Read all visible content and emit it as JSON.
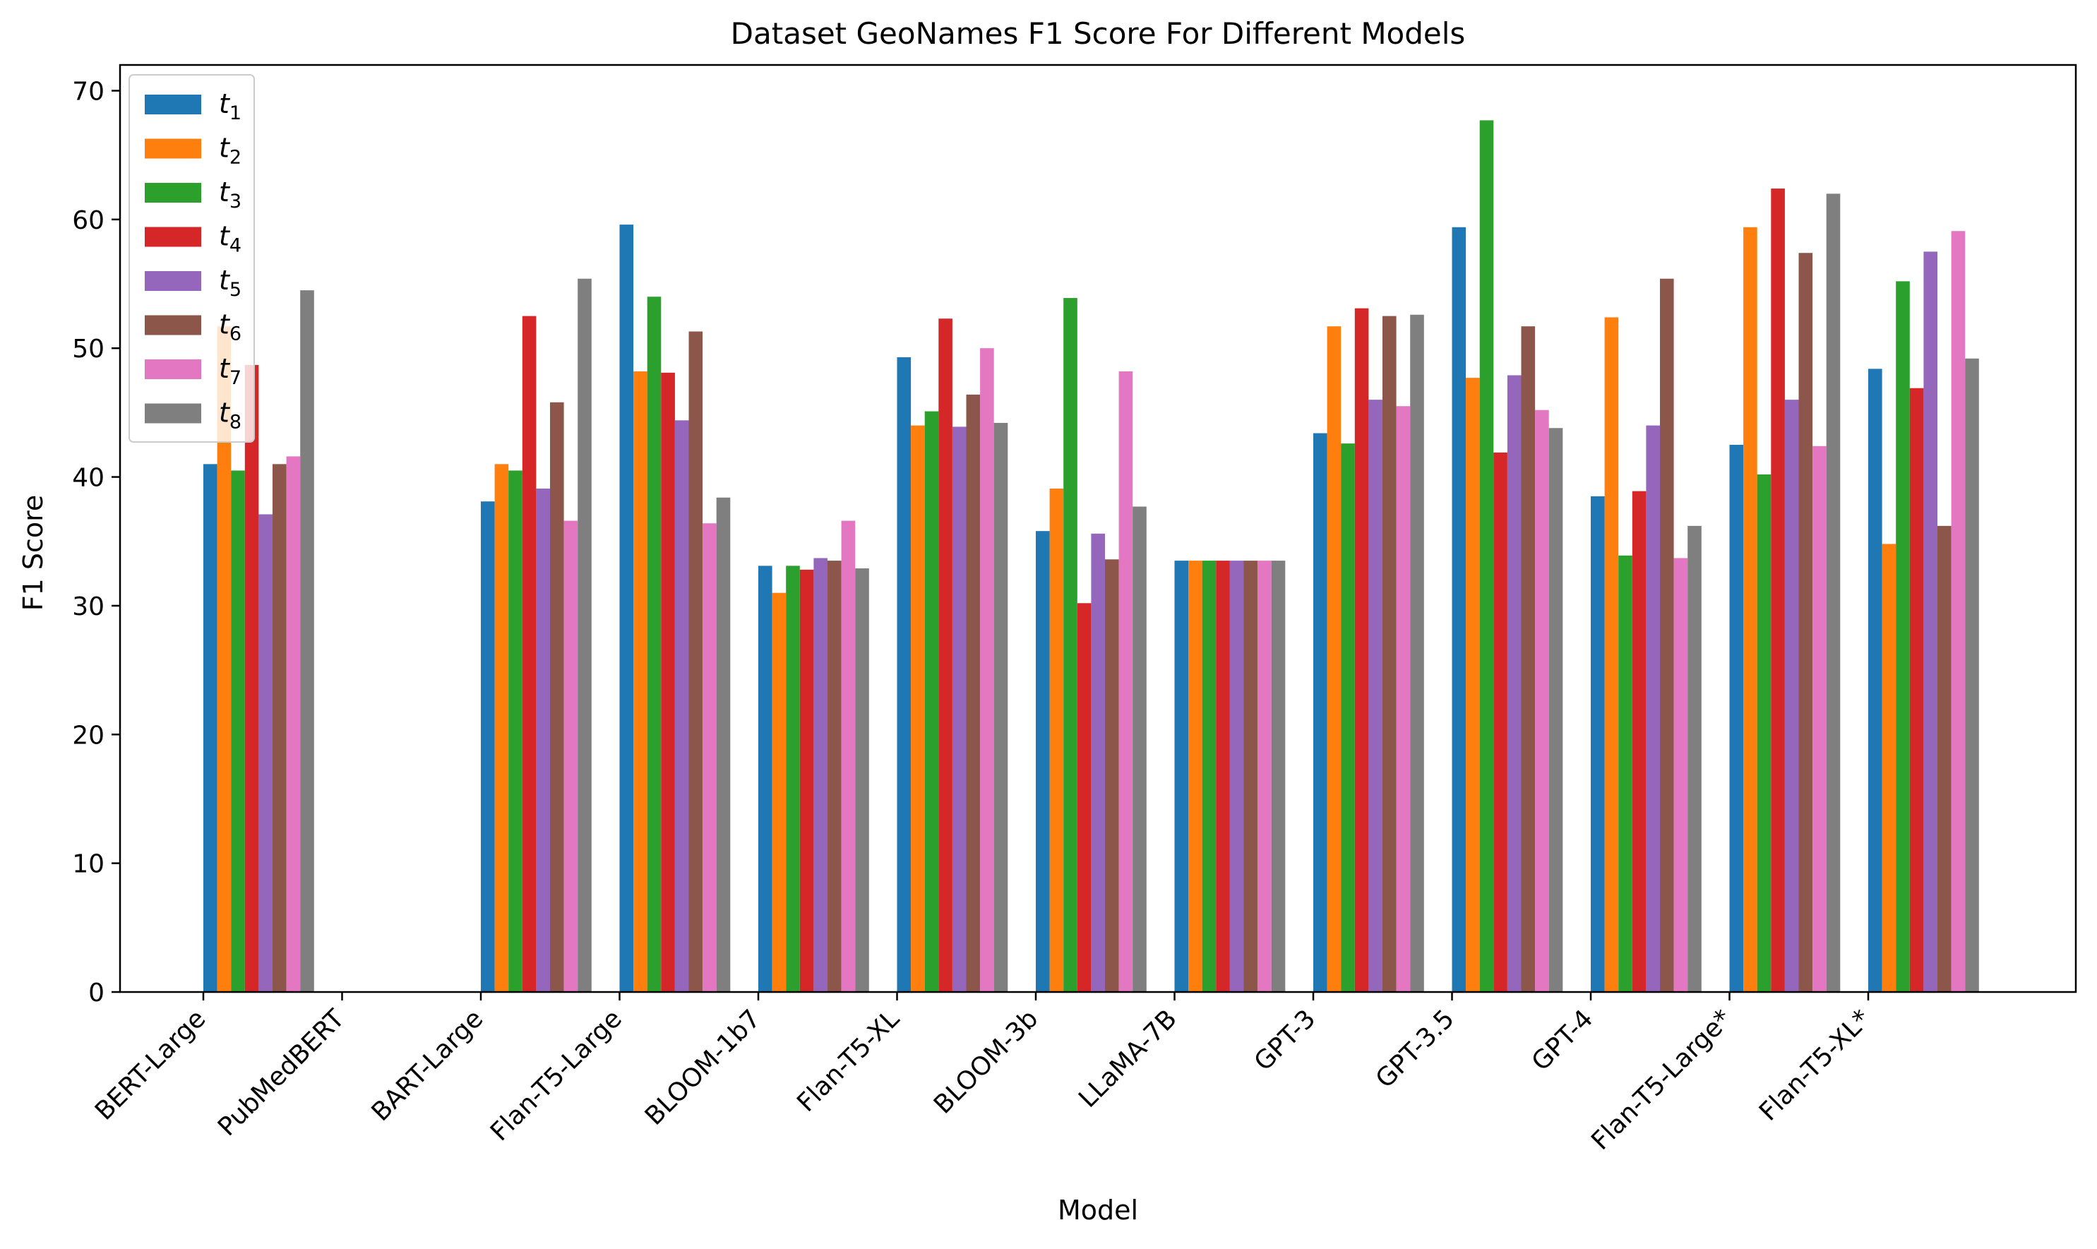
{
  "chart_data": {
    "type": "bar",
    "title": "Dataset GeoNames F1 Score For Different Models",
    "xlabel": "Model",
    "ylabel": "F1 Score",
    "ylim": [
      0,
      72
    ],
    "yticks": [
      0,
      10,
      20,
      30,
      40,
      50,
      60,
      70
    ],
    "grid": false,
    "legend_position": "top-left",
    "categories": [
      "BERT-Large",
      "PubMedBERT",
      "BART-Large",
      "Flan-T5-Large",
      "BLOOM-1b7",
      "Flan-T5-XL",
      "BLOOM-3b",
      "LLaMA-7B",
      "GPT-3",
      "GPT-3.5",
      "GPT-4",
      "Flan-T5-Large*",
      "Flan-T5-XL*"
    ],
    "series": [
      {
        "name": "t",
        "sub": "1",
        "color": "#1f77b4",
        "values": [
          41.0,
          null,
          38.1,
          59.6,
          33.1,
          49.3,
          35.8,
          33.5,
          43.4,
          59.4,
          38.5,
          42.5,
          48.4
        ]
      },
      {
        "name": "t",
        "sub": "2",
        "color": "#ff7f0e",
        "values": [
          51.7,
          null,
          41.0,
          48.2,
          31.0,
          44.0,
          39.1,
          33.5,
          51.7,
          47.7,
          52.4,
          59.4,
          34.8
        ]
      },
      {
        "name": "t",
        "sub": "3",
        "color": "#2ca02c",
        "values": [
          40.5,
          null,
          40.5,
          54.0,
          33.1,
          45.1,
          53.9,
          33.5,
          42.6,
          67.7,
          33.9,
          40.2,
          55.2
        ]
      },
      {
        "name": "t",
        "sub": "4",
        "color": "#d62728",
        "values": [
          48.7,
          null,
          52.5,
          48.1,
          32.8,
          52.3,
          30.2,
          33.5,
          53.1,
          41.9,
          38.9,
          62.4,
          46.9
        ]
      },
      {
        "name": "t",
        "sub": "5",
        "color": "#9467bd",
        "values": [
          37.1,
          null,
          39.1,
          44.4,
          33.7,
          43.9,
          35.6,
          33.5,
          46.0,
          47.9,
          44.0,
          46.0,
          57.5
        ]
      },
      {
        "name": "t",
        "sub": "6",
        "color": "#8c564b",
        "values": [
          41.0,
          null,
          45.8,
          51.3,
          33.5,
          46.4,
          33.6,
          33.5,
          52.5,
          51.7,
          55.4,
          57.4,
          36.2
        ]
      },
      {
        "name": "t",
        "sub": "7",
        "color": "#e377c2",
        "values": [
          41.6,
          null,
          36.6,
          36.4,
          36.6,
          50.0,
          48.2,
          33.5,
          45.5,
          45.2,
          33.7,
          42.4,
          59.1
        ]
      },
      {
        "name": "t",
        "sub": "8",
        "color": "#7f7f7f",
        "values": [
          54.5,
          null,
          55.4,
          38.4,
          32.9,
          44.2,
          37.7,
          33.5,
          52.6,
          43.8,
          36.2,
          62.0,
          49.2
        ]
      }
    ]
  }
}
